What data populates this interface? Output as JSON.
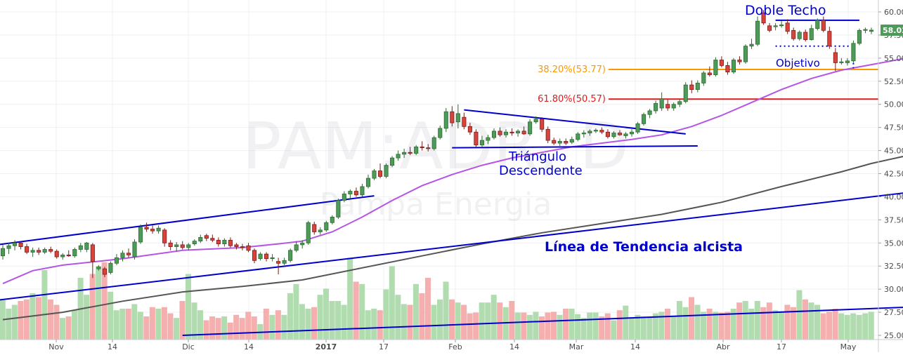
{
  "chart_data": {
    "type": "candlestick",
    "symbol": "PAM:ADR, D",
    "watermark_company": "Pampa Energia",
    "last_price": "58.03",
    "y_ticks": [
      "60.00",
      "57.50",
      "55.00",
      "52.50",
      "50.00",
      "47.50",
      "45.00",
      "42.50",
      "40.00",
      "37.50",
      "35.00",
      "32.50",
      "30.00",
      "27.50",
      "25.00"
    ],
    "ylim": [
      25.0,
      60.8
    ],
    "x_ticks": [
      "Nov",
      "14",
      "Dic",
      "14",
      "2017",
      "17",
      "Feb",
      "14",
      "Mar",
      "14",
      "Abr",
      "17",
      "May"
    ],
    "grid": true,
    "fib_levels": [
      {
        "label": "38.20%(53.77)",
        "value": 53.77,
        "color": "#ff9800"
      },
      {
        "label": "61.80%(50.57)",
        "value": 50.57,
        "color": "#e31a1c"
      }
    ],
    "annotations": {
      "double_top": "Doble Techo",
      "target": "Objetivo",
      "triangle_line1": "Triángulo",
      "triangle_line2": "Descendente",
      "trendline": "Línea de Tendencia alcista"
    },
    "candles": [
      {
        "o": 33.6,
        "h": 34.8,
        "l": 33.2,
        "c": 34.4
      },
      {
        "o": 34.4,
        "h": 35.0,
        "l": 33.8,
        "c": 34.7
      },
      {
        "o": 34.7,
        "h": 35.3,
        "l": 34.2,
        "c": 35.0
      },
      {
        "o": 35.0,
        "h": 35.2,
        "l": 34.3,
        "c": 34.6
      },
      {
        "o": 34.6,
        "h": 34.9,
        "l": 33.8,
        "c": 34.0
      },
      {
        "o": 34.0,
        "h": 34.5,
        "l": 33.5,
        "c": 34.2
      },
      {
        "o": 34.2,
        "h": 34.5,
        "l": 33.7,
        "c": 34.0
      },
      {
        "o": 34.0,
        "h": 34.5,
        "l": 33.8,
        "c": 34.3
      },
      {
        "o": 34.3,
        "h": 34.6,
        "l": 33.9,
        "c": 34.1
      },
      {
        "o": 34.1,
        "h": 34.3,
        "l": 33.3,
        "c": 33.5
      },
      {
        "o": 33.5,
        "h": 33.9,
        "l": 33.2,
        "c": 33.7
      },
      {
        "o": 33.7,
        "h": 34.2,
        "l": 33.5,
        "c": 33.6
      },
      {
        "o": 33.6,
        "h": 34.5,
        "l": 33.4,
        "c": 34.3
      },
      {
        "o": 34.3,
        "h": 35.0,
        "l": 34.0,
        "c": 34.7
      },
      {
        "o": 34.3,
        "h": 35.1,
        "l": 34.0,
        "c": 35.0
      },
      {
        "o": 34.8,
        "h": 35.0,
        "l": 31.2,
        "c": 33.0
      },
      {
        "o": 32.2,
        "h": 32.6,
        "l": 32.0,
        "c": 32.4
      },
      {
        "o": 32.2,
        "h": 32.4,
        "l": 31.3,
        "c": 31.6
      },
      {
        "o": 31.8,
        "h": 33.0,
        "l": 31.6,
        "c": 32.8
      },
      {
        "o": 32.8,
        "h": 33.8,
        "l": 32.6,
        "c": 33.4
      },
      {
        "o": 33.4,
        "h": 34.2,
        "l": 33.0,
        "c": 33.9
      },
      {
        "o": 33.9,
        "h": 34.4,
        "l": 33.4,
        "c": 33.7
      },
      {
        "o": 33.5,
        "h": 35.4,
        "l": 33.2,
        "c": 35.1
      },
      {
        "o": 35.1,
        "h": 37.0,
        "l": 34.9,
        "c": 36.7
      },
      {
        "o": 36.7,
        "h": 37.2,
        "l": 36.2,
        "c": 36.5
      },
      {
        "o": 36.5,
        "h": 36.9,
        "l": 36.0,
        "c": 36.3
      },
      {
        "o": 36.3,
        "h": 36.9,
        "l": 36.0,
        "c": 36.6
      },
      {
        "o": 36.4,
        "h": 36.6,
        "l": 34.6,
        "c": 35.0
      },
      {
        "o": 35.0,
        "h": 35.3,
        "l": 34.2,
        "c": 34.6
      },
      {
        "o": 34.6,
        "h": 35.1,
        "l": 34.1,
        "c": 34.8
      },
      {
        "o": 34.8,
        "h": 35.2,
        "l": 34.3,
        "c": 34.5
      },
      {
        "o": 34.5,
        "h": 35.0,
        "l": 34.2,
        "c": 34.8
      },
      {
        "o": 34.9,
        "h": 35.4,
        "l": 34.7,
        "c": 35.2
      },
      {
        "o": 35.2,
        "h": 35.9,
        "l": 35.0,
        "c": 35.6
      },
      {
        "o": 35.8,
        "h": 36.0,
        "l": 35.2,
        "c": 35.5
      },
      {
        "o": 35.5,
        "h": 35.9,
        "l": 35.1,
        "c": 35.3
      },
      {
        "o": 35.3,
        "h": 35.6,
        "l": 34.6,
        "c": 34.9
      },
      {
        "o": 34.9,
        "h": 35.5,
        "l": 34.6,
        "c": 35.3
      },
      {
        "o": 35.3,
        "h": 35.6,
        "l": 34.5,
        "c": 34.7
      },
      {
        "o": 34.8,
        "h": 35.0,
        "l": 34.3,
        "c": 34.6
      },
      {
        "o": 34.6,
        "h": 34.9,
        "l": 34.2,
        "c": 34.5
      },
      {
        "o": 34.7,
        "h": 35.0,
        "l": 34.0,
        "c": 34.2
      },
      {
        "o": 34.2,
        "h": 34.4,
        "l": 32.8,
        "c": 33.1
      },
      {
        "o": 33.3,
        "h": 34.0,
        "l": 33.1,
        "c": 33.8
      },
      {
        "o": 33.8,
        "h": 34.0,
        "l": 33.0,
        "c": 33.3
      },
      {
        "o": 33.3,
        "h": 33.8,
        "l": 33.0,
        "c": 33.4
      },
      {
        "o": 33.0,
        "h": 33.4,
        "l": 31.6,
        "c": 32.8
      },
      {
        "o": 32.8,
        "h": 33.4,
        "l": 32.6,
        "c": 33.1
      },
      {
        "o": 33.1,
        "h": 34.4,
        "l": 32.9,
        "c": 34.2
      },
      {
        "o": 34.2,
        "h": 35.2,
        "l": 34.0,
        "c": 34.8
      },
      {
        "o": 34.8,
        "h": 35.3,
        "l": 34.4,
        "c": 35.0
      },
      {
        "o": 35.0,
        "h": 37.4,
        "l": 34.8,
        "c": 37.2
      },
      {
        "o": 37.0,
        "h": 37.3,
        "l": 35.9,
        "c": 36.2
      },
      {
        "o": 36.2,
        "h": 36.7,
        "l": 35.9,
        "c": 36.4
      },
      {
        "o": 36.4,
        "h": 37.4,
        "l": 36.2,
        "c": 37.2
      },
      {
        "o": 37.2,
        "h": 38.0,
        "l": 37.0,
        "c": 37.8
      },
      {
        "o": 37.8,
        "h": 39.8,
        "l": 37.6,
        "c": 39.6
      },
      {
        "o": 39.6,
        "h": 40.6,
        "l": 39.4,
        "c": 40.3
      },
      {
        "o": 40.3,
        "h": 40.8,
        "l": 39.8,
        "c": 40.6
      },
      {
        "o": 40.6,
        "h": 41.0,
        "l": 40.0,
        "c": 40.2
      },
      {
        "o": 40.2,
        "h": 41.4,
        "l": 40.0,
        "c": 41.1
      },
      {
        "o": 41.1,
        "h": 42.4,
        "l": 40.9,
        "c": 42.0
      },
      {
        "o": 42.0,
        "h": 43.0,
        "l": 41.8,
        "c": 42.8
      },
      {
        "o": 42.8,
        "h": 43.6,
        "l": 42.0,
        "c": 42.2
      },
      {
        "o": 42.2,
        "h": 43.6,
        "l": 42.0,
        "c": 43.4
      },
      {
        "o": 43.4,
        "h": 44.4,
        "l": 43.2,
        "c": 44.2
      },
      {
        "o": 44.2,
        "h": 45.0,
        "l": 43.9,
        "c": 44.6
      },
      {
        "o": 44.6,
        "h": 45.2,
        "l": 44.2,
        "c": 44.8
      },
      {
        "o": 44.8,
        "h": 45.4,
        "l": 44.5,
        "c": 44.7
      },
      {
        "o": 44.7,
        "h": 45.6,
        "l": 44.5,
        "c": 45.4
      },
      {
        "o": 45.4,
        "h": 46.0,
        "l": 45.0,
        "c": 45.3
      },
      {
        "o": 45.3,
        "h": 45.7,
        "l": 44.9,
        "c": 45.2
      },
      {
        "o": 45.2,
        "h": 46.6,
        "l": 45.0,
        "c": 46.4
      },
      {
        "o": 46.4,
        "h": 47.7,
        "l": 46.2,
        "c": 47.4
      },
      {
        "o": 47.4,
        "h": 49.6,
        "l": 47.0,
        "c": 49.2
      },
      {
        "o": 49.2,
        "h": 49.8,
        "l": 47.6,
        "c": 48.0
      },
      {
        "o": 48.1,
        "h": 50.0,
        "l": 47.4,
        "c": 49.0
      },
      {
        "o": 48.6,
        "h": 49.1,
        "l": 47.3,
        "c": 47.6
      },
      {
        "o": 47.6,
        "h": 48.0,
        "l": 46.7,
        "c": 47.0
      },
      {
        "o": 47.0,
        "h": 47.3,
        "l": 45.4,
        "c": 45.6
      },
      {
        "o": 45.6,
        "h": 46.6,
        "l": 45.4,
        "c": 46.1
      },
      {
        "o": 46.1,
        "h": 46.7,
        "l": 45.7,
        "c": 46.4
      },
      {
        "o": 46.4,
        "h": 47.4,
        "l": 46.2,
        "c": 47.1
      },
      {
        "o": 47.1,
        "h": 47.5,
        "l": 46.5,
        "c": 46.7
      },
      {
        "o": 46.7,
        "h": 47.3,
        "l": 46.4,
        "c": 47.0
      },
      {
        "o": 47.0,
        "h": 47.4,
        "l": 46.6,
        "c": 46.9
      },
      {
        "o": 46.9,
        "h": 47.3,
        "l": 46.5,
        "c": 47.1
      },
      {
        "o": 47.1,
        "h": 47.6,
        "l": 46.7,
        "c": 46.8
      },
      {
        "o": 46.8,
        "h": 48.4,
        "l": 46.6,
        "c": 48.1
      },
      {
        "o": 48.1,
        "h": 48.7,
        "l": 47.9,
        "c": 48.4
      },
      {
        "o": 48.4,
        "h": 48.6,
        "l": 47.0,
        "c": 47.3
      },
      {
        "o": 47.3,
        "h": 47.6,
        "l": 45.8,
        "c": 46.1
      },
      {
        "o": 46.1,
        "h": 46.4,
        "l": 45.6,
        "c": 45.8
      },
      {
        "o": 45.8,
        "h": 46.3,
        "l": 45.5,
        "c": 46.0
      },
      {
        "o": 46.0,
        "h": 46.3,
        "l": 45.6,
        "c": 45.8
      },
      {
        "o": 45.9,
        "h": 46.5,
        "l": 45.7,
        "c": 46.2
      },
      {
        "o": 46.2,
        "h": 47.0,
        "l": 46.0,
        "c": 46.8
      },
      {
        "o": 46.8,
        "h": 47.2,
        "l": 46.4,
        "c": 46.9
      },
      {
        "o": 46.9,
        "h": 47.3,
        "l": 46.6,
        "c": 47.1
      },
      {
        "o": 47.1,
        "h": 47.4,
        "l": 46.9,
        "c": 47.2
      },
      {
        "o": 47.2,
        "h": 47.5,
        "l": 46.8,
        "c": 47.0
      },
      {
        "o": 47.0,
        "h": 47.3,
        "l": 46.3,
        "c": 46.5
      },
      {
        "o": 46.5,
        "h": 47.1,
        "l": 46.3,
        "c": 46.9
      },
      {
        "o": 46.9,
        "h": 47.2,
        "l": 46.6,
        "c": 46.7
      },
      {
        "o": 46.6,
        "h": 47.0,
        "l": 46.3,
        "c": 46.8
      },
      {
        "o": 46.8,
        "h": 47.3,
        "l": 46.5,
        "c": 47.0
      },
      {
        "o": 47.0,
        "h": 48.1,
        "l": 46.8,
        "c": 47.9
      },
      {
        "o": 47.9,
        "h": 49.1,
        "l": 47.7,
        "c": 48.9
      },
      {
        "o": 48.9,
        "h": 49.5,
        "l": 48.5,
        "c": 49.3
      },
      {
        "o": 49.3,
        "h": 50.4,
        "l": 49.0,
        "c": 50.1
      },
      {
        "o": 49.6,
        "h": 51.3,
        "l": 49.3,
        "c": 50.6
      },
      {
        "o": 50.0,
        "h": 50.5,
        "l": 49.3,
        "c": 49.6
      },
      {
        "o": 49.6,
        "h": 50.2,
        "l": 49.3,
        "c": 50.0
      },
      {
        "o": 50.0,
        "h": 50.6,
        "l": 49.7,
        "c": 50.3
      },
      {
        "o": 50.3,
        "h": 52.4,
        "l": 50.1,
        "c": 52.1
      },
      {
        "o": 52.1,
        "h": 52.6,
        "l": 51.2,
        "c": 51.6
      },
      {
        "o": 51.6,
        "h": 52.6,
        "l": 51.3,
        "c": 52.3
      },
      {
        "o": 52.3,
        "h": 53.6,
        "l": 52.0,
        "c": 53.4
      },
      {
        "o": 53.4,
        "h": 54.1,
        "l": 53.0,
        "c": 53.2
      },
      {
        "o": 53.2,
        "h": 55.1,
        "l": 53.0,
        "c": 54.8
      },
      {
        "o": 54.8,
        "h": 55.2,
        "l": 54.0,
        "c": 54.2
      },
      {
        "o": 54.2,
        "h": 54.6,
        "l": 53.2,
        "c": 53.5
      },
      {
        "o": 53.5,
        "h": 55.0,
        "l": 53.3,
        "c": 54.8
      },
      {
        "o": 54.8,
        "h": 55.2,
        "l": 54.3,
        "c": 54.6
      },
      {
        "o": 54.6,
        "h": 56.5,
        "l": 54.4,
        "c": 56.3
      },
      {
        "o": 56.3,
        "h": 57.1,
        "l": 56.0,
        "c": 56.5
      },
      {
        "o": 56.5,
        "h": 59.5,
        "l": 56.3,
        "c": 59.0
      },
      {
        "o": 59.9,
        "h": 60.2,
        "l": 58.6,
        "c": 58.8
      },
      {
        "o": 58.5,
        "h": 58.8,
        "l": 57.8,
        "c": 58.0
      },
      {
        "o": 58.4,
        "h": 58.8,
        "l": 58.0,
        "c": 58.5
      },
      {
        "o": 58.5,
        "h": 59.0,
        "l": 58.3,
        "c": 58.6
      },
      {
        "o": 58.8,
        "h": 59.2,
        "l": 57.6,
        "c": 57.9
      },
      {
        "o": 58.0,
        "h": 58.3,
        "l": 56.9,
        "c": 57.1
      },
      {
        "o": 57.1,
        "h": 58.0,
        "l": 56.9,
        "c": 57.8
      },
      {
        "o": 57.8,
        "h": 58.1,
        "l": 56.8,
        "c": 57.0
      },
      {
        "o": 57.0,
        "h": 58.6,
        "l": 56.9,
        "c": 58.2
      },
      {
        "o": 58.2,
        "h": 59.3,
        "l": 58.0,
        "c": 59.1
      },
      {
        "o": 59.1,
        "h": 59.5,
        "l": 57.8,
        "c": 58.0
      },
      {
        "o": 57.9,
        "h": 58.4,
        "l": 56.0,
        "c": 56.3
      },
      {
        "o": 55.6,
        "h": 56.1,
        "l": 53.6,
        "c": 54.5
      },
      {
        "o": 54.5,
        "h": 55.0,
        "l": 54.3,
        "c": 54.6
      },
      {
        "o": 54.5,
        "h": 55.0,
        "l": 54.2,
        "c": 54.7
      },
      {
        "o": 54.7,
        "h": 56.9,
        "l": 54.5,
        "c": 56.6
      },
      {
        "o": 56.6,
        "h": 58.2,
        "l": 56.4,
        "c": 58.0
      },
      {
        "o": 58.0,
        "h": 58.3,
        "l": 57.7,
        "c": 58.1
      },
      {
        "o": 57.9,
        "h": 58.3,
        "l": 57.6,
        "c": 58.03
      }
    ],
    "volume_relative": [
      0.52,
      0.4,
      0.45,
      0.5,
      0.52,
      0.6,
      0.55,
      0.9,
      0.52,
      0.45,
      0.28,
      0.3,
      0.38,
      0.8,
      0.58,
      0.85,
      0.95,
      1.0,
      0.62,
      0.38,
      0.4,
      0.4,
      0.46,
      0.36,
      0.3,
      0.42,
      0.4,
      0.42,
      0.34,
      0.28,
      0.5,
      0.85,
      0.48,
      0.38,
      0.25,
      0.3,
      0.28,
      0.3,
      0.22,
      0.32,
      0.28,
      0.36,
      0.3,
      0.2,
      0.4,
      0.32,
      0.38,
      0.32,
      0.6,
      0.72,
      0.46,
      0.4,
      0.42,
      0.58,
      0.66,
      0.5,
      0.5,
      0.45,
      1.06,
      0.75,
      0.72,
      0.38,
      0.4,
      0.38,
      0.65,
      0.95,
      0.58,
      0.46,
      0.45,
      0.72,
      0.6,
      0.8,
      0.45,
      0.52,
      0.75,
      0.52,
      0.48,
      0.45,
      0.34,
      0.35,
      0.48,
      0.48,
      0.58,
      0.48,
      0.42,
      0.5,
      0.35,
      0.35,
      0.32,
      0.36,
      0.3,
      0.35,
      0.36,
      0.32,
      0.4,
      0.4,
      0.33,
      0.28,
      0.35,
      0.35,
      0.3,
      0.34,
      0.25,
      0.38,
      0.44,
      0.28,
      0.32,
      0.3,
      0.3,
      0.34,
      0.36,
      0.4,
      0.3,
      0.5,
      0.42,
      0.55,
      0.45,
      0.36,
      0.4,
      0.36,
      0.35,
      0.36,
      0.4,
      0.48,
      0.5,
      0.4,
      0.5,
      0.42,
      0.48,
      0.38,
      0.36,
      0.45,
      0.42,
      0.64,
      0.52,
      0.48,
      0.45,
      0.34,
      0.36,
      0.4,
      0.34,
      0.32,
      0.34,
      0.32,
      0.34,
      0.36,
      0.45,
      0.38,
      0.4,
      0.44,
      0.36
    ],
    "ma_short": [
      [
        0,
        30.6
      ],
      [
        5,
        32.0
      ],
      [
        10,
        32.6
      ],
      [
        20,
        33.3
      ],
      [
        30,
        34.2
      ],
      [
        40,
        34.5
      ],
      [
        46,
        34.9
      ],
      [
        50,
        35.2
      ],
      [
        55,
        36.2
      ],
      [
        60,
        37.8
      ],
      [
        65,
        39.6
      ],
      [
        70,
        41.2
      ],
      [
        75,
        42.4
      ],
      [
        80,
        43.4
      ],
      [
        85,
        44.2
      ],
      [
        90,
        44.8
      ],
      [
        95,
        45.4
      ],
      [
        100,
        45.8
      ],
      [
        105,
        46.2
      ],
      [
        110,
        46.7
      ],
      [
        115,
        47.6
      ],
      [
        120,
        48.8
      ],
      [
        125,
        50.2
      ],
      [
        130,
        51.6
      ],
      [
        135,
        52.8
      ],
      [
        140,
        53.7
      ],
      [
        145,
        54.3
      ],
      [
        150,
        54.9
      ],
      [
        152,
        55.2
      ]
    ],
    "ma_long": [
      [
        0,
        26.7
      ],
      [
        10,
        27.5
      ],
      [
        20,
        28.7
      ],
      [
        30,
        29.7
      ],
      [
        40,
        30.3
      ],
      [
        50,
        31.0
      ],
      [
        60,
        32.3
      ],
      [
        70,
        33.6
      ],
      [
        80,
        34.9
      ],
      [
        90,
        36.1
      ],
      [
        100,
        37.1
      ],
      [
        110,
        38.1
      ],
      [
        120,
        39.4
      ],
      [
        130,
        41.1
      ],
      [
        140,
        42.7
      ],
      [
        145,
        43.6
      ],
      [
        152,
        44.6
      ]
    ],
    "trendlines": [
      {
        "name": "upper-channel",
        "from": [
          -1,
          34.8
        ],
        "to": [
          62,
          40.1
        ],
        "color": "#0000cc"
      },
      {
        "name": "lower-channel",
        "from": [
          -1,
          28.8
        ],
        "to": [
          153,
          40.6
        ],
        "color": "#0000cc"
      },
      {
        "name": "triangle-top",
        "from": [
          77,
          49.4
        ],
        "to": [
          114,
          46.8
        ],
        "color": "#0000cc"
      },
      {
        "name": "triangle-bottom",
        "from": [
          75,
          45.3
        ],
        "to": [
          116,
          45.5
        ],
        "color": "#0000cc"
      },
      {
        "name": "double-top",
        "from": [
          129,
          59.1
        ],
        "to": [
          143,
          59.1
        ],
        "color": "#0000cc"
      },
      {
        "name": "volume-trend",
        "from": [
          30,
          25.0
        ],
        "to": [
          153,
          28.1
        ],
        "color": "#0000cc"
      }
    ],
    "target_dotted": {
      "neckline": 56.3,
      "from": 129,
      "to": 142,
      "drop_to": 53.9
    }
  }
}
